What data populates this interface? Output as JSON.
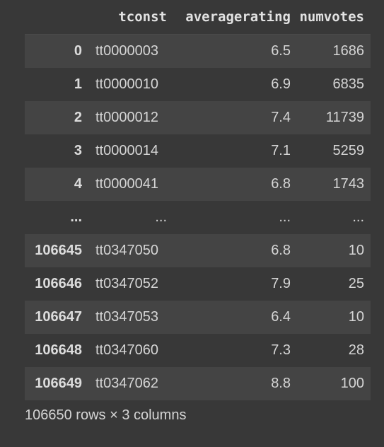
{
  "table": {
    "index_header": "",
    "headers": [
      "tconst",
      "averagerating",
      "numvotes"
    ],
    "rows": [
      {
        "index": "0",
        "tconst": "tt0000003",
        "averagerating": "6.5",
        "numvotes": "1686"
      },
      {
        "index": "1",
        "tconst": "tt0000010",
        "averagerating": "6.9",
        "numvotes": "6835"
      },
      {
        "index": "2",
        "tconst": "tt0000012",
        "averagerating": "7.4",
        "numvotes": "11739"
      },
      {
        "index": "3",
        "tconst": "tt0000014",
        "averagerating": "7.1",
        "numvotes": "5259"
      },
      {
        "index": "4",
        "tconst": "tt0000041",
        "averagerating": "6.8",
        "numvotes": "1743"
      },
      {
        "index": "...",
        "tconst": "...",
        "averagerating": "...",
        "numvotes": "..."
      },
      {
        "index": "106645",
        "tconst": "tt0347050",
        "averagerating": "6.8",
        "numvotes": "10"
      },
      {
        "index": "106646",
        "tconst": "tt0347052",
        "averagerating": "7.9",
        "numvotes": "25"
      },
      {
        "index": "106647",
        "tconst": "tt0347053",
        "averagerating": "6.4",
        "numvotes": "10"
      },
      {
        "index": "106648",
        "tconst": "tt0347060",
        "averagerating": "7.3",
        "numvotes": "28"
      },
      {
        "index": "106649",
        "tconst": "tt0347062",
        "averagerating": "8.8",
        "numvotes": "100"
      }
    ]
  },
  "footer": {
    "shape_text": "106650 rows × 3 columns"
  },
  "colors": {
    "background": "#383838",
    "stripe": "#444444",
    "text": "#d5d5d5"
  }
}
